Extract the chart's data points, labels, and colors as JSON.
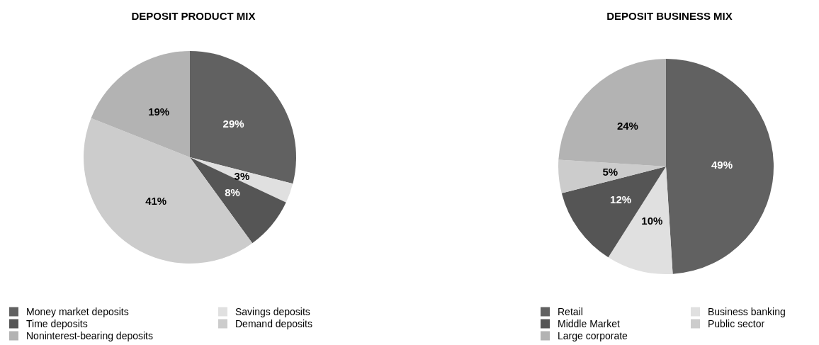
{
  "chart_data": [
    {
      "type": "pie",
      "title": "DEPOSIT PRODUCT MIX",
      "categories": [
        "Money market deposits",
        "Savings deposits",
        "Time deposits",
        "Demand deposits",
        "Noninterest-bearing deposits"
      ],
      "values": [
        29,
        3,
        8,
        41,
        19
      ],
      "colors": [
        "#616161",
        "#e0e0e0",
        "#555555",
        "#cccccc",
        "#b3b3b3"
      ],
      "value_labels": [
        "29%",
        "3%",
        "8%",
        "41%",
        "19%"
      ],
      "legend": "bottom left"
    },
    {
      "type": "pie",
      "title": "DEPOSIT BUSINESS MIX",
      "categories": [
        "Retail",
        "Business banking",
        "Middle Market",
        "Public sector",
        "Large corporate"
      ],
      "values": [
        49,
        10,
        12,
        5,
        24
      ],
      "colors": [
        "#616161",
        "#e0e0e0",
        "#555555",
        "#cccccc",
        "#b3b3b3"
      ],
      "value_labels": [
        "49%",
        "10%",
        "12%",
        "5%",
        "24%"
      ],
      "legend": "bottom"
    }
  ]
}
